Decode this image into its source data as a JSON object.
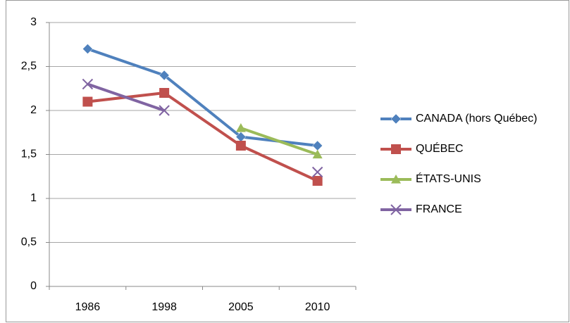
{
  "chart_data": {
    "type": "line",
    "categories": [
      "1986",
      "1998",
      "2005",
      "2010"
    ],
    "series": [
      {
        "name": "CANADA (hors Québec)",
        "color": "#4f81bd",
        "marker": "diamond",
        "values": [
          2.7,
          2.4,
          1.7,
          1.6
        ]
      },
      {
        "name": "QUÉBEC",
        "color": "#c0504d",
        "marker": "square",
        "values": [
          2.1,
          2.2,
          1.6,
          1.2
        ]
      },
      {
        "name": "ÉTATS-UNIS",
        "color": "#9bbb59",
        "marker": "triangle",
        "values": [
          null,
          null,
          1.8,
          1.5
        ]
      },
      {
        "name": "FRANCE",
        "color": "#8064a2",
        "marker": "x",
        "values": [
          2.3,
          2.0,
          null,
          1.3
        ]
      }
    ],
    "ylim": [
      0,
      3
    ],
    "yticks": [
      0,
      {
        "value": 0.5,
        "label": "0,5"
      },
      1,
      {
        "value": 1.5,
        "label": "1,5"
      },
      2,
      {
        "value": 2.5,
        "label": "2,5"
      },
      3
    ],
    "grid": true,
    "legend": "right"
  }
}
